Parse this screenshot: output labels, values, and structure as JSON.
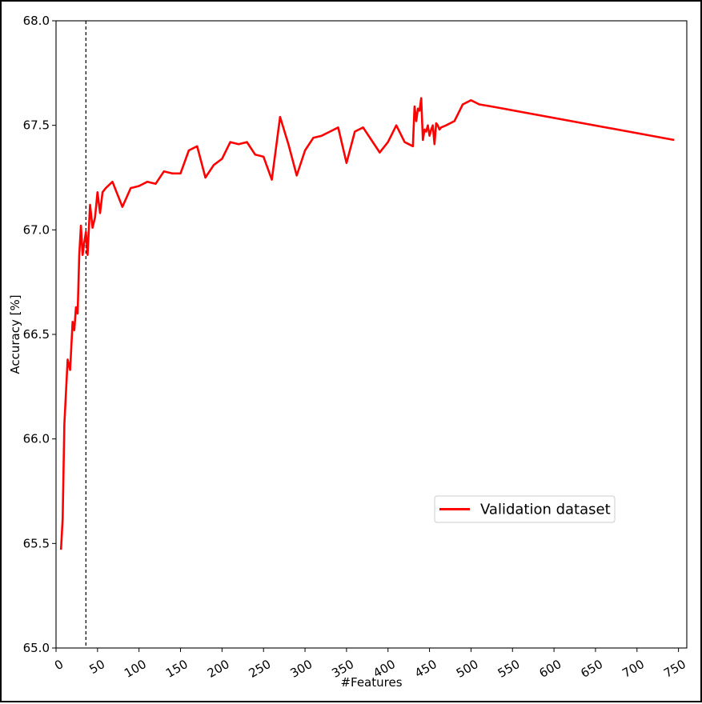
{
  "chart_data": {
    "type": "line",
    "title": "",
    "xlabel": "#Features",
    "ylabel": "Accuracy [%]",
    "xlim": [
      0,
      760
    ],
    "ylim": [
      65.0,
      68.0
    ],
    "xticks": [
      0,
      50,
      100,
      150,
      200,
      250,
      300,
      350,
      400,
      450,
      500,
      550,
      600,
      650,
      700,
      750
    ],
    "yticks": [
      65.0,
      65.5,
      66.0,
      66.5,
      67.0,
      67.5,
      68.0
    ],
    "xtick_labels": [
      "0",
      "50",
      "100",
      "150",
      "200",
      "250",
      "300",
      "350",
      "400",
      "450",
      "500",
      "550",
      "600",
      "650",
      "700",
      "750"
    ],
    "ytick_labels": [
      "65.0",
      "65.5",
      "66.0",
      "66.5",
      "67.0",
      "67.5",
      "68.0"
    ],
    "grid": false,
    "legend_position": "lower-right",
    "vline": {
      "x": 36,
      "style": "dashed",
      "color": "#000000"
    },
    "series": [
      {
        "name": "Validation dataset",
        "color": "#ff0000",
        "x": [
          6,
          8,
          10,
          14,
          17,
          20,
          22,
          24,
          26,
          28,
          30,
          32,
          34,
          36,
          38,
          41,
          44,
          47,
          50,
          53,
          56,
          58,
          60,
          68,
          80,
          90,
          100,
          110,
          120,
          130,
          140,
          150,
          160,
          170,
          180,
          190,
          200,
          210,
          220,
          230,
          240,
          250,
          260,
          270,
          280,
          290,
          300,
          310,
          320,
          330,
          340,
          350,
          360,
          370,
          380,
          390,
          400,
          410,
          420,
          430,
          432,
          434,
          436,
          438,
          440,
          442,
          444,
          446,
          448,
          450,
          452,
          454,
          456,
          458,
          460,
          462,
          464,
          470,
          480,
          490,
          500,
          510,
          525,
          745
        ],
        "values": [
          65.47,
          65.62,
          66.07,
          66.38,
          66.33,
          66.56,
          66.52,
          66.63,
          66.6,
          66.88,
          67.02,
          66.88,
          66.94,
          66.99,
          66.88,
          67.12,
          67.01,
          67.06,
          67.18,
          67.08,
          67.18,
          67.19,
          67.2,
          67.23,
          67.11,
          67.2,
          67.21,
          67.23,
          67.22,
          67.28,
          67.27,
          67.27,
          67.38,
          67.4,
          67.25,
          67.31,
          67.34,
          67.42,
          67.41,
          67.42,
          67.36,
          67.35,
          67.24,
          67.54,
          67.41,
          67.26,
          67.38,
          67.44,
          67.45,
          67.47,
          67.49,
          67.32,
          67.47,
          67.49,
          67.43,
          67.37,
          67.42,
          67.5,
          67.42,
          67.4,
          67.59,
          67.52,
          67.58,
          67.57,
          67.63,
          67.43,
          67.48,
          67.47,
          67.5,
          67.45,
          67.48,
          67.5,
          67.41,
          67.51,
          67.5,
          67.48,
          67.49,
          67.5,
          67.52,
          67.6,
          67.62,
          67.6,
          67.59,
          67.43
        ]
      }
    ]
  }
}
